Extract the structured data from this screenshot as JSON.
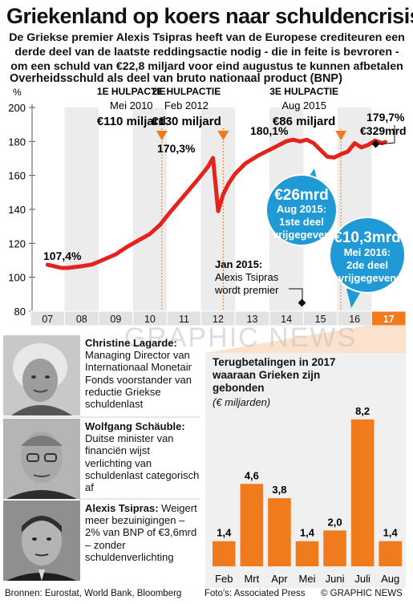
{
  "headline": "Griekenland op koers naar schuldencrisis",
  "deck": "De Griekse premier Alexis Tsipras heeft van de Europese crediteuren een derde deel van de laatste reddingsactie nodig - die in feite is bevroren - om een schuld van €22,8 miljard voor eind augustus te kunnen afbetalen",
  "watermark": "GRAPHIC NEWS",
  "colors": {
    "line": "#e4241c",
    "accent_orange": "#f07b1d",
    "callout_blue": "#1f9ad6",
    "panel_grey": "#f0f0f0",
    "band_grey": "#e2e2e2"
  },
  "chart_data": [
    {
      "type": "line",
      "title": "Overheidsschuld als deel van bruto nationaal product (BNP)",
      "ylabel": "%",
      "ylim": [
        80,
        200
      ],
      "yticks": [
        80,
        100,
        120,
        140,
        160,
        180,
        200
      ],
      "xlim": [
        2006.5,
        2017.5
      ],
      "x_tick_labels": [
        "07",
        "08",
        "09",
        "10",
        "11",
        "12",
        "13",
        "14",
        "15",
        "16",
        "17"
      ],
      "series": [
        {
          "x": [
            2007.0,
            2007.2,
            2007.4,
            2007.6,
            2008.0,
            2008.3,
            2008.6,
            2009.0,
            2009.3,
            2009.6,
            2010.0,
            2010.3,
            2010.6,
            2011.0,
            2011.4,
            2011.7,
            2011.85,
            2012.0,
            2012.15,
            2012.3,
            2012.5,
            2012.8,
            2013.2,
            2013.6,
            2014.0,
            2014.2,
            2014.4,
            2014.6,
            2014.8,
            2015.0,
            2015.2,
            2015.4,
            2015.6,
            2015.8,
            2016.0,
            2016.2,
            2016.4,
            2016.6,
            2016.8,
            2016.9
          ],
          "y": [
            107.4,
            106.5,
            105.5,
            105.5,
            106.5,
            107.5,
            110,
            113.5,
            117.5,
            121,
            125.5,
            131,
            138.5,
            148,
            157.5,
            165,
            170.3,
            139,
            149,
            155,
            161,
            167,
            172,
            176,
            180.1,
            181,
            180,
            181,
            179,
            175,
            171,
            170.5,
            172.5,
            174,
            179,
            176.5,
            178,
            180.5,
            179,
            179.7
          ]
        }
      ],
      "bailouts": [
        {
          "x": 2010.35,
          "label": "1E HULPACTIE",
          "date": "Mei 2010",
          "amount": "€110 miljard"
        },
        {
          "x": 2012.15,
          "label": "2E HULPACTIE",
          "date": "Feb 2012",
          "amount": "€130 miljard"
        },
        {
          "x": 2015.6,
          "label": "3E HULPACTIE",
          "date": "Aug 2015",
          "amount": "€86 miljard"
        }
      ],
      "annotations": {
        "start_value": "107,4%",
        "peak_2011": "170,3%",
        "peak_2014": "180,1%",
        "end_value_pct": "179,7%",
        "end_value_amount": "€329mrd",
        "event_label": "Jan 2015:",
        "event_text_1": "Alexis Tsipras",
        "event_text_2": "wordt premier",
        "callout1_amount": "€26mrd",
        "callout1_line1": "Aug 2015:",
        "callout1_line2": "1ste deel",
        "callout1_line3": "vrijgegeven",
        "callout2_amount": "€10,3mrd",
        "callout2_line1": "Mei 2016:",
        "callout2_line2": "2de deel",
        "callout2_line3": "vrijgegeven"
      },
      "grid": false
    },
    {
      "type": "bar",
      "title": "Terugbetalingen in 2017 waaraan Grieken zijn gebonden",
      "subtitle": "(€ miljarden)",
      "categories": [
        "Feb",
        "Mrt",
        "Apr",
        "Mei",
        "Juni",
        "Juli",
        "Aug"
      ],
      "values": [
        1.4,
        4.6,
        3.8,
        1.4,
        2.0,
        8.2,
        1.4
      ],
      "value_labels": [
        "1,4",
        "4,6",
        "3,8",
        "1,4",
        "2,0",
        "8,2",
        "1,4"
      ],
      "ylim": [
        0,
        9
      ],
      "grid": false
    }
  ],
  "people": [
    {
      "name": "Christine Lagarde:",
      "text": "Managing Director van Internationaal Monetair Fonds voorstander van reductie Griekse schuldenlast"
    },
    {
      "name": "Wolfgang Schäuble:",
      "text": "Duitse minister van financiën wijst verlichting van schuldenlast categorisch af"
    },
    {
      "name": "Alexis Tsipras:",
      "text": "Weigert meer bezuinigingen – 2% van BNP of €3,6mrd – zonder schuldenverlichting"
    }
  ],
  "footer": {
    "sources": "Bronnen: Eurostat, World Bank, Bloomberg",
    "credit": "Foto's: Associated Press",
    "logo": "© GRAPHIC NEWS"
  }
}
